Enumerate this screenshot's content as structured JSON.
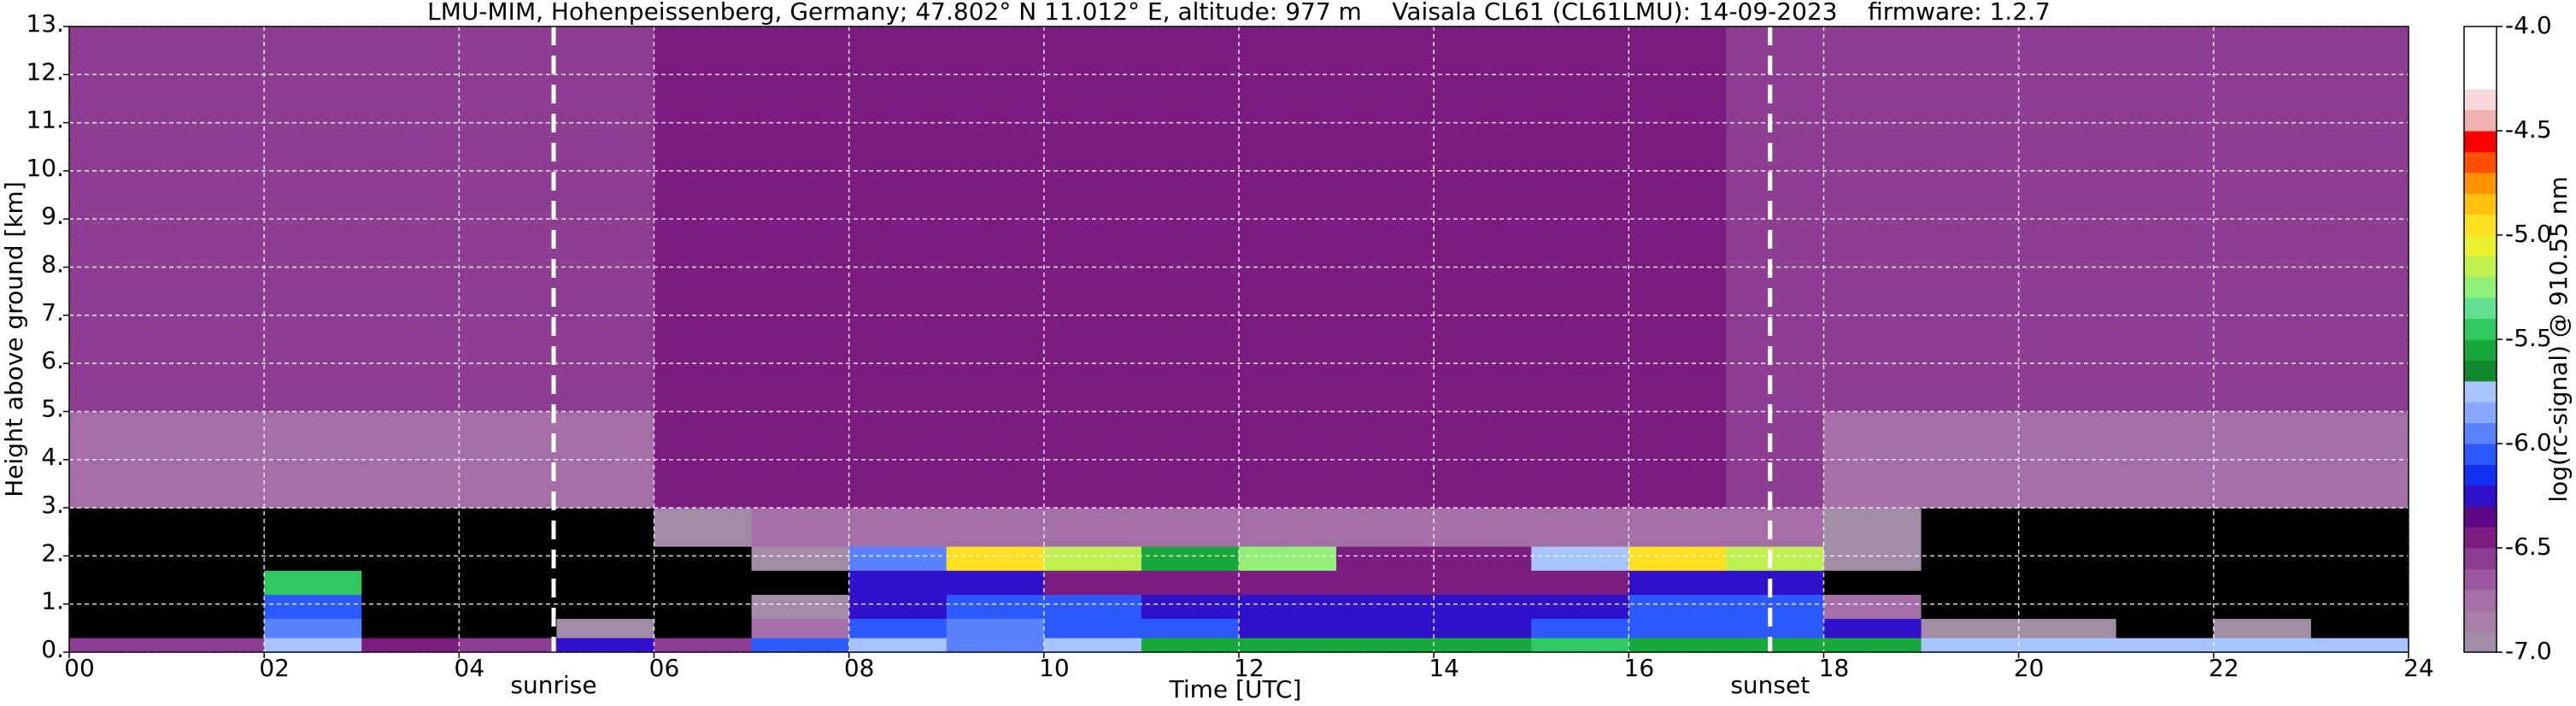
{
  "chart_data": {
    "type": "heatmap",
    "title": "LMU-MIM, Hohenpeissenberg, Germany; 47.802° N 11.012° E, altitude: 977 m    Vaisala CL61 (CL61LMU): 14-09-2023    firmware: 1.2.7",
    "xlabel": "Time [UTC]",
    "ylabel": "Height above ground [km]",
    "colorbar_label": "log(rc-signal) @ 910.55 nm",
    "xlim": [
      0,
      24
    ],
    "ylim": [
      0,
      13
    ],
    "xticks": [
      {
        "value": 0,
        "label": "00"
      },
      {
        "value": 2,
        "label": "02"
      },
      {
        "value": 4,
        "label": "04"
      },
      {
        "value": 6,
        "label": "06"
      },
      {
        "value": 8,
        "label": "08"
      },
      {
        "value": 10,
        "label": "10"
      },
      {
        "value": 12,
        "label": "12"
      },
      {
        "value": 14,
        "label": "14"
      },
      {
        "value": 16,
        "label": "16"
      },
      {
        "value": 18,
        "label": "18"
      },
      {
        "value": 20,
        "label": "20"
      },
      {
        "value": 22,
        "label": "22"
      },
      {
        "value": 24,
        "label": "24"
      }
    ],
    "yticks": [
      {
        "value": 0,
        "label": "0."
      },
      {
        "value": 1,
        "label": "1."
      },
      {
        "value": 2,
        "label": "2."
      },
      {
        "value": 3,
        "label": "3."
      },
      {
        "value": 4,
        "label": "4."
      },
      {
        "value": 5,
        "label": "5."
      },
      {
        "value": 6,
        "label": "6."
      },
      {
        "value": 7,
        "label": "7."
      },
      {
        "value": 8,
        "label": "8."
      },
      {
        "value": 9,
        "label": "9."
      },
      {
        "value": 10,
        "label": "10."
      },
      {
        "value": 11,
        "label": "11."
      },
      {
        "value": 12,
        "label": "12."
      },
      {
        "value": 13,
        "label": "13."
      }
    ],
    "grid": true,
    "clim": [
      -7,
      -4
    ],
    "cticks": [
      {
        "value": -4,
        "label": "-4.0"
      },
      {
        "value": -4.5,
        "label": "-4.5"
      },
      {
        "value": -5,
        "label": "-5.0"
      },
      {
        "value": -5.5,
        "label": "-5.5"
      },
      {
        "value": -6,
        "label": "-6.0"
      },
      {
        "value": -6.5,
        "label": "-6.5"
      },
      {
        "value": -7,
        "label": "-7.0"
      }
    ],
    "under_color": "#000000",
    "colors": [
      "#a08ca4",
      "#a67fa8",
      "#a56ea6",
      "#9b58a0",
      "#8e3e92",
      "#7b1c80",
      "#5e0a86",
      "#3010c8",
      "#1430f0",
      "#2c5aff",
      "#5a82ff",
      "#86a8ff",
      "#a8c4ff",
      "#10882c",
      "#18a83c",
      "#30c860",
      "#60e090",
      "#90f078",
      "#c0f050",
      "#e8f030",
      "#ffe020",
      "#ffc010",
      "#ff9000",
      "#ff5000",
      "#ff0000",
      "#f0b0b0",
      "#f8d8d8",
      "#ffffff",
      "#ffffff",
      "#ffffff"
    ],
    "annotations": [
      {
        "text": "sunrise",
        "x": 4.97
      },
      {
        "text": "sunset",
        "x": 17.45
      }
    ],
    "x_bins": [
      0,
      1,
      2,
      3,
      4,
      5,
      6,
      7,
      8,
      9,
      10,
      11,
      12,
      13,
      14,
      15,
      16,
      17,
      18,
      19,
      20,
      21,
      22,
      23,
      24
    ],
    "y_bins": [
      0,
      0.3,
      0.7,
      1.2,
      1.7,
      2.2,
      3,
      5,
      7,
      9,
      11,
      13
    ],
    "z": [
      [
        -6.6,
        -6.6,
        -5.8,
        -6.4,
        -6.6,
        -6.2,
        -6.6,
        -6.1,
        -5.7,
        -5.9,
        -5.8,
        -5.6,
        -5.6,
        -5.6,
        -5.6,
        -5.5,
        -5.6,
        -5.6,
        -5.6,
        -5.7,
        -5.8,
        -5.8,
        -5.7,
        -5.8
      ],
      [
        -7.5,
        -7.5,
        -6.0,
        -7.3,
        -7.5,
        -7.0,
        -7.5,
        -6.8,
        -6.1,
        -6.0,
        -6.1,
        -6.1,
        -6.2,
        -6.2,
        -6.2,
        -6.1,
        -6.1,
        -6.1,
        -6.3,
        -6.9,
        -7.0,
        -7.1,
        -7.0,
        -7.1
      ],
      [
        -7.5,
        -7.5,
        -6.1,
        -7.4,
        -7.5,
        -7.2,
        -7.5,
        -7.0,
        -6.2,
        -6.1,
        -6.1,
        -6.2,
        -6.3,
        -6.3,
        -6.3,
        -6.2,
        -6.1,
        -6.1,
        -6.8,
        -7.5,
        -7.5,
        -7.5,
        -7.5,
        -7.5
      ],
      [
        -7.5,
        -7.5,
        -5.4,
        -7.5,
        -7.5,
        -7.3,
        -7.5,
        -7.2,
        -6.3,
        -6.2,
        -6.4,
        -6.4,
        -6.5,
        -6.5,
        -6.4,
        -6.4,
        -6.3,
        -6.3,
        -7.3,
        -7.5,
        -7.5,
        -7.5,
        -7.5,
        -7.5
      ],
      [
        -7.5,
        -7.5,
        -7.5,
        -7.5,
        -7.5,
        -7.5,
        -7.5,
        -7.0,
        -6.0,
        -5.0,
        -5.2,
        -5.6,
        -5.3,
        -6.4,
        -6.5,
        -5.8,
        -5.0,
        -5.2,
        -7.0,
        -7.5,
        -7.5,
        -7.5,
        -7.5,
        -7.5
      ],
      [
        -7.4,
        -7.4,
        -7.4,
        -7.4,
        -7.3,
        -7.2,
        -6.9,
        -6.8,
        -6.8,
        -6.7,
        -6.7,
        -6.7,
        -6.7,
        -6.7,
        -6.7,
        -6.7,
        -6.7,
        -6.8,
        -7.0,
        -7.2,
        -7.3,
        -7.3,
        -7.3,
        -7.3
      ],
      [
        -6.7,
        -6.7,
        -6.7,
        -6.7,
        -6.7,
        -6.7,
        -6.5,
        -6.5,
        -6.5,
        -6.5,
        -6.5,
        -6.5,
        -6.5,
        -6.5,
        -6.5,
        -6.5,
        -6.5,
        -6.6,
        -6.7,
        -6.7,
        -6.7,
        -6.7,
        -6.7,
        -6.7
      ],
      [
        -6.6,
        -6.6,
        -6.6,
        -6.6,
        -6.6,
        -6.6,
        -6.4,
        -6.4,
        -6.4,
        -6.4,
        -6.4,
        -6.4,
        -6.4,
        -6.4,
        -6.4,
        -6.4,
        -6.4,
        -6.6,
        -6.6,
        -6.6,
        -6.6,
        -6.6,
        -6.6,
        -6.6
      ],
      [
        -6.6,
        -6.6,
        -6.6,
        -6.6,
        -6.6,
        -6.6,
        -6.4,
        -6.4,
        -6.4,
        -6.4,
        -6.4,
        -6.4,
        -6.4,
        -6.4,
        -6.4,
        -6.4,
        -6.4,
        -6.6,
        -6.6,
        -6.6,
        -6.6,
        -6.6,
        -6.6,
        -6.6
      ],
      [
        -6.6,
        -6.6,
        -6.6,
        -6.6,
        -6.6,
        -6.6,
        -6.4,
        -6.4,
        -6.4,
        -6.4,
        -6.4,
        -6.4,
        -6.4,
        -6.4,
        -6.4,
        -6.4,
        -6.4,
        -6.6,
        -6.6,
        -6.6,
        -6.6,
        -6.6,
        -6.6,
        -6.6
      ],
      [
        -6.6,
        -6.6,
        -6.6,
        -6.6,
        -6.6,
        -6.6,
        -6.4,
        -6.4,
        -6.4,
        -6.4,
        -6.4,
        -6.4,
        -6.4,
        -6.4,
        -6.4,
        -6.4,
        -6.4,
        -6.6,
        -6.6,
        -6.6,
        -6.6,
        -6.6,
        -6.6,
        -6.6
      ]
    ]
  }
}
